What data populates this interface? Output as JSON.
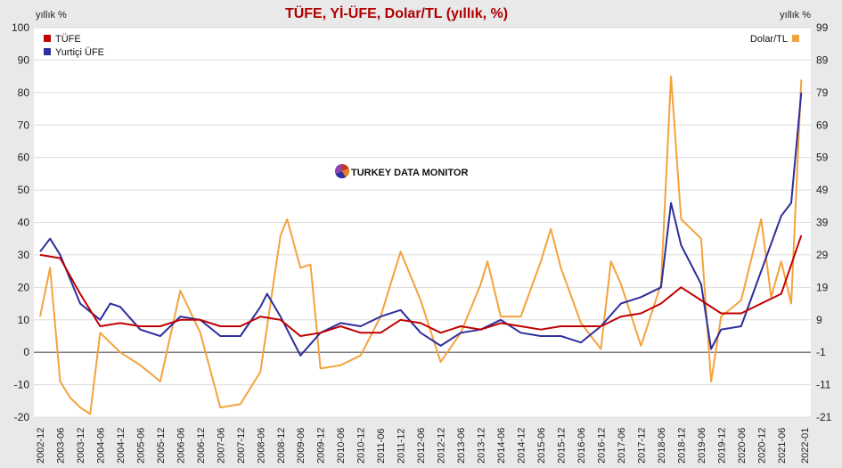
{
  "chart_data": {
    "type": "line",
    "title": "TÜFE, Yİ-ÜFE, Dolar/TL (yıllık, %)",
    "left_unit": "yıllık %",
    "right_unit": "yıllık %",
    "watermark": "TURKEY DATA MONITOR",
    "left_axis": {
      "min": -20,
      "max": 100,
      "ticks": [
        100,
        90,
        80,
        70,
        60,
        50,
        40,
        30,
        20,
        10,
        0,
        -10,
        -20
      ]
    },
    "right_axis": {
      "ticks": [
        99,
        89,
        79,
        69,
        59,
        49,
        39,
        29,
        19,
        9,
        -1,
        -11,
        -21
      ]
    },
    "x_tick_labels": [
      "2002-12",
      "2003-06",
      "2003-12",
      "2004-06",
      "2004-12",
      "2005-06",
      "2005-12",
      "2006-06",
      "2006-12",
      "2007-06",
      "2007-12",
      "2008-06",
      "2008-12",
      "2009-06",
      "2009-12",
      "2010-06",
      "2010-12",
      "2011-06",
      "2011-12",
      "2012-06",
      "2012-12",
      "2013-06",
      "2013-12",
      "2014-06",
      "2014-12",
      "2015-06",
      "2015-12",
      "2016-06",
      "2016-12",
      "2017-06",
      "2017-12",
      "2018-06",
      "2018-12",
      "2019-06",
      "2019-12",
      "2020-06",
      "2020-12",
      "2021-06",
      "2022-01"
    ],
    "legend_left": [
      {
        "name": "TÜFE",
        "color": "#c00000"
      },
      {
        "name": "Yurtiçi ÜFE",
        "color": "#2e2e9c"
      }
    ],
    "legend_right": [
      {
        "name": "Dolar/TL",
        "color": "#f4a23c"
      }
    ],
    "grid": true,
    "series": [
      {
        "name": "TÜFE",
        "axis": "left",
        "color": "#c00000",
        "points": [
          [
            "2002-12",
            30
          ],
          [
            "2003-06",
            29
          ],
          [
            "2003-12",
            18
          ],
          [
            "2004-06",
            8
          ],
          [
            "2004-12",
            9
          ],
          [
            "2005-06",
            8
          ],
          [
            "2005-12",
            8
          ],
          [
            "2006-06",
            10
          ],
          [
            "2006-12",
            10
          ],
          [
            "2007-06",
            8
          ],
          [
            "2007-12",
            8
          ],
          [
            "2008-06",
            11
          ],
          [
            "2008-12",
            10
          ],
          [
            "2009-06",
            5
          ],
          [
            "2009-12",
            6
          ],
          [
            "2010-06",
            8
          ],
          [
            "2010-12",
            6
          ],
          [
            "2011-06",
            6
          ],
          [
            "2011-12",
            10
          ],
          [
            "2012-06",
            9
          ],
          [
            "2012-12",
            6
          ],
          [
            "2013-06",
            8
          ],
          [
            "2013-12",
            7
          ],
          [
            "2014-06",
            9
          ],
          [
            "2014-12",
            8
          ],
          [
            "2015-06",
            7
          ],
          [
            "2015-12",
            8
          ],
          [
            "2016-06",
            8
          ],
          [
            "2016-12",
            8
          ],
          [
            "2017-06",
            11
          ],
          [
            "2017-12",
            12
          ],
          [
            "2018-06",
            15
          ],
          [
            "2018-12",
            20
          ],
          [
            "2019-06",
            16
          ],
          [
            "2019-12",
            12
          ],
          [
            "2020-06",
            12
          ],
          [
            "2020-12",
            15
          ],
          [
            "2021-06",
            18
          ],
          [
            "2021-12",
            36
          ]
        ]
      },
      {
        "name": "Yurtiçi ÜFE",
        "axis": "left",
        "color": "#2e2e9c",
        "points": [
          [
            "2002-12",
            31
          ],
          [
            "2003-03",
            35
          ],
          [
            "2003-06",
            30
          ],
          [
            "2003-12",
            15
          ],
          [
            "2004-06",
            10
          ],
          [
            "2004-09",
            15
          ],
          [
            "2004-12",
            14
          ],
          [
            "2005-06",
            7
          ],
          [
            "2005-12",
            5
          ],
          [
            "2006-06",
            11
          ],
          [
            "2006-12",
            10
          ],
          [
            "2007-06",
            5
          ],
          [
            "2007-12",
            5
          ],
          [
            "2008-06",
            14
          ],
          [
            "2008-08",
            18
          ],
          [
            "2008-12",
            11
          ],
          [
            "2009-06",
            -1
          ],
          [
            "2009-12",
            6
          ],
          [
            "2010-06",
            9
          ],
          [
            "2010-12",
            8
          ],
          [
            "2011-06",
            11
          ],
          [
            "2011-12",
            13
          ],
          [
            "2012-06",
            6
          ],
          [
            "2012-12",
            2
          ],
          [
            "2013-06",
            6
          ],
          [
            "2013-12",
            7
          ],
          [
            "2014-06",
            10
          ],
          [
            "2014-12",
            6
          ],
          [
            "2015-06",
            5
          ],
          [
            "2015-12",
            5
          ],
          [
            "2016-06",
            3
          ],
          [
            "2016-12",
            8
          ],
          [
            "2017-06",
            15
          ],
          [
            "2017-12",
            17
          ],
          [
            "2018-06",
            20
          ],
          [
            "2018-09",
            46
          ],
          [
            "2018-12",
            33
          ],
          [
            "2019-06",
            21
          ],
          [
            "2019-09",
            1
          ],
          [
            "2019-12",
            7
          ],
          [
            "2020-06",
            8
          ],
          [
            "2020-12",
            25
          ],
          [
            "2021-06",
            42
          ],
          [
            "2021-09",
            46
          ],
          [
            "2021-12",
            80
          ]
        ]
      },
      {
        "name": "Dolar/TL",
        "axis": "right",
        "color": "#f4a23c",
        "points": [
          [
            "2002-12",
            10
          ],
          [
            "2003-03",
            25
          ],
          [
            "2003-06",
            -10
          ],
          [
            "2003-09",
            -15
          ],
          [
            "2003-12",
            -18
          ],
          [
            "2004-03",
            -20
          ],
          [
            "2004-06",
            5
          ],
          [
            "2004-12",
            -1
          ],
          [
            "2005-06",
            -5
          ],
          [
            "2005-12",
            -10
          ],
          [
            "2006-06",
            18
          ],
          [
            "2006-12",
            5
          ],
          [
            "2007-06",
            -18
          ],
          [
            "2007-12",
            -17
          ],
          [
            "2008-06",
            -7
          ],
          [
            "2008-12",
            35
          ],
          [
            "2009-02",
            40
          ],
          [
            "2009-06",
            25
          ],
          [
            "2009-09",
            26
          ],
          [
            "2009-12",
            -6
          ],
          [
            "2010-06",
            -5
          ],
          [
            "2010-12",
            -2
          ],
          [
            "2011-06",
            10
          ],
          [
            "2011-12",
            30
          ],
          [
            "2012-06",
            15
          ],
          [
            "2012-12",
            -4
          ],
          [
            "2013-06",
            5
          ],
          [
            "2013-12",
            20
          ],
          [
            "2014-02",
            27
          ],
          [
            "2014-06",
            10
          ],
          [
            "2014-12",
            10
          ],
          [
            "2015-06",
            27
          ],
          [
            "2015-09",
            37
          ],
          [
            "2015-12",
            25
          ],
          [
            "2016-06",
            8
          ],
          [
            "2016-12",
            0
          ],
          [
            "2017-03",
            27
          ],
          [
            "2017-06",
            20
          ],
          [
            "2017-12",
            1
          ],
          [
            "2018-06",
            20
          ],
          [
            "2018-09",
            84
          ],
          [
            "2018-12",
            40
          ],
          [
            "2019-06",
            34
          ],
          [
            "2019-09",
            -10
          ],
          [
            "2019-12",
            10
          ],
          [
            "2020-06",
            15
          ],
          [
            "2020-12",
            40
          ],
          [
            "2021-03",
            16
          ],
          [
            "2021-06",
            27
          ],
          [
            "2021-09",
            14
          ],
          [
            "2021-12",
            83
          ]
        ]
      }
    ]
  }
}
